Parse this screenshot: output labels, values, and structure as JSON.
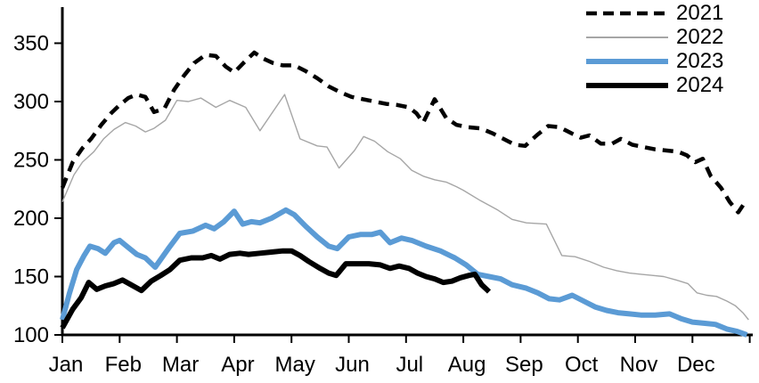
{
  "chart_data": {
    "type": "line",
    "title": "",
    "xlabel": "",
    "ylabel": "",
    "grid": false,
    "legend_position": "top-right",
    "x_axis": {
      "tick_labels": [
        "Jan",
        "Feb",
        "Mar",
        "Apr",
        "May",
        "Jun",
        "Jul",
        "Aug",
        "Sep",
        "Oct",
        "Nov",
        "Dec"
      ],
      "unit": "month",
      "range_months": [
        0,
        12.05
      ]
    },
    "y_axis": {
      "ticks": [
        100,
        150,
        200,
        250,
        300,
        350
      ],
      "range": [
        100,
        362
      ]
    },
    "series": [
      {
        "name": "2021",
        "color": "#000000",
        "style": "dashed",
        "width": 4.5,
        "points": [
          [
            0,
            226
          ],
          [
            0.18,
            248
          ],
          [
            0.35,
            260
          ],
          [
            0.5,
            268
          ],
          [
            0.68,
            280
          ],
          [
            0.85,
            290
          ],
          [
            1.0,
            297
          ],
          [
            1.15,
            303
          ],
          [
            1.3,
            306
          ],
          [
            1.45,
            304
          ],
          [
            1.6,
            291
          ],
          [
            1.78,
            294
          ],
          [
            1.95,
            310
          ],
          [
            2.12,
            322
          ],
          [
            2.3,
            333
          ],
          [
            2.5,
            340
          ],
          [
            2.68,
            339
          ],
          [
            2.85,
            330
          ],
          [
            3.0,
            325
          ],
          [
            3.18,
            334
          ],
          [
            3.35,
            342
          ],
          [
            3.5,
            337
          ],
          [
            3.68,
            333
          ],
          [
            3.85,
            331
          ],
          [
            4.05,
            331
          ],
          [
            4.25,
            326
          ],
          [
            4.45,
            320
          ],
          [
            4.65,
            313
          ],
          [
            4.85,
            308
          ],
          [
            5.05,
            304
          ],
          [
            5.25,
            302
          ],
          [
            5.45,
            300
          ],
          [
            5.65,
            298
          ],
          [
            5.85,
            297
          ],
          [
            6.05,
            295
          ],
          [
            6.18,
            290
          ],
          [
            6.3,
            282
          ],
          [
            6.5,
            302
          ],
          [
            6.7,
            286
          ],
          [
            6.88,
            280
          ],
          [
            7.08,
            278
          ],
          [
            7.3,
            277
          ],
          [
            7.5,
            273
          ],
          [
            7.7,
            268
          ],
          [
            7.9,
            263
          ],
          [
            8.08,
            262
          ],
          [
            8.28,
            271
          ],
          [
            8.48,
            279
          ],
          [
            8.68,
            278
          ],
          [
            8.88,
            273
          ],
          [
            9.05,
            269
          ],
          [
            9.2,
            271
          ],
          [
            9.4,
            264
          ],
          [
            9.6,
            264
          ],
          [
            9.75,
            268
          ],
          [
            9.95,
            263
          ],
          [
            10.15,
            261
          ],
          [
            10.35,
            259
          ],
          [
            10.55,
            258
          ],
          [
            10.75,
            257
          ],
          [
            10.9,
            254
          ],
          [
            11.05,
            248
          ],
          [
            11.18,
            251
          ],
          [
            11.32,
            236
          ],
          [
            11.5,
            226
          ],
          [
            11.65,
            214
          ],
          [
            11.8,
            205
          ],
          [
            11.95,
            216
          ]
        ]
      },
      {
        "name": "2022",
        "color": "#a6a6a6",
        "style": "solid",
        "width": 1.4,
        "points": [
          [
            0,
            214
          ],
          [
            0.2,
            237
          ],
          [
            0.35,
            248
          ],
          [
            0.55,
            257
          ],
          [
            0.72,
            268
          ],
          [
            0.9,
            276
          ],
          [
            1.1,
            282
          ],
          [
            1.28,
            279
          ],
          [
            1.45,
            274
          ],
          [
            1.6,
            277
          ],
          [
            1.8,
            284
          ],
          [
            2.0,
            301
          ],
          [
            2.2,
            300
          ],
          [
            2.42,
            303
          ],
          [
            2.68,
            295
          ],
          [
            2.92,
            301
          ],
          [
            3.2,
            295
          ],
          [
            3.45,
            275
          ],
          [
            3.88,
            306
          ],
          [
            4.15,
            268
          ],
          [
            4.45,
            262
          ],
          [
            4.62,
            261
          ],
          [
            4.83,
            243
          ],
          [
            5.1,
            258
          ],
          [
            5.26,
            270
          ],
          [
            5.45,
            266
          ],
          [
            5.68,
            257
          ],
          [
            5.9,
            251
          ],
          [
            6.1,
            241
          ],
          [
            6.3,
            236
          ],
          [
            6.5,
            233
          ],
          [
            6.7,
            231
          ],
          [
            6.88,
            227
          ],
          [
            7.0,
            224
          ],
          [
            7.3,
            215
          ],
          [
            7.6,
            207
          ],
          [
            7.85,
            199
          ],
          [
            8.1,
            196
          ],
          [
            8.45,
            195
          ],
          [
            8.72,
            168
          ],
          [
            8.95,
            167
          ],
          [
            9.2,
            163
          ],
          [
            9.45,
            158
          ],
          [
            9.68,
            155
          ],
          [
            9.9,
            153
          ],
          [
            10.1,
            152
          ],
          [
            10.3,
            151
          ],
          [
            10.5,
            150
          ],
          [
            10.72,
            147
          ],
          [
            10.92,
            144
          ],
          [
            11.08,
            136
          ],
          [
            11.25,
            134
          ],
          [
            11.42,
            133
          ],
          [
            11.6,
            129
          ],
          [
            11.75,
            125
          ],
          [
            11.88,
            119
          ],
          [
            11.98,
            113
          ]
        ]
      },
      {
        "name": "2023",
        "color": "#5b9bd5",
        "style": "solid",
        "width": 6,
        "points": [
          [
            0,
            113
          ],
          [
            0.12,
            135
          ],
          [
            0.25,
            156
          ],
          [
            0.38,
            168
          ],
          [
            0.48,
            176
          ],
          [
            0.62,
            174
          ],
          [
            0.75,
            170
          ],
          [
            0.9,
            179
          ],
          [
            1.0,
            181
          ],
          [
            1.15,
            175
          ],
          [
            1.3,
            169
          ],
          [
            1.45,
            166
          ],
          [
            1.62,
            158
          ],
          [
            1.85,
            174
          ],
          [
            2.05,
            187
          ],
          [
            2.28,
            189
          ],
          [
            2.5,
            194
          ],
          [
            2.65,
            191
          ],
          [
            2.82,
            197
          ],
          [
            3.0,
            206
          ],
          [
            3.15,
            195
          ],
          [
            3.3,
            197
          ],
          [
            3.45,
            196
          ],
          [
            3.65,
            200
          ],
          [
            3.9,
            207
          ],
          [
            4.05,
            203
          ],
          [
            4.25,
            193
          ],
          [
            4.45,
            184
          ],
          [
            4.65,
            176
          ],
          [
            4.8,
            174
          ],
          [
            5.0,
            184
          ],
          [
            5.2,
            186
          ],
          [
            5.4,
            186
          ],
          [
            5.55,
            188
          ],
          [
            5.72,
            179
          ],
          [
            5.92,
            183
          ],
          [
            6.1,
            181
          ],
          [
            6.35,
            176
          ],
          [
            6.6,
            172
          ],
          [
            6.85,
            166
          ],
          [
            7.05,
            160
          ],
          [
            7.25,
            152
          ],
          [
            7.45,
            150
          ],
          [
            7.65,
            148
          ],
          [
            7.85,
            143
          ],
          [
            8.1,
            140
          ],
          [
            8.3,
            136
          ],
          [
            8.5,
            131
          ],
          [
            8.68,
            130
          ],
          [
            8.9,
            134
          ],
          [
            9.1,
            129
          ],
          [
            9.3,
            124
          ],
          [
            9.5,
            121
          ],
          [
            9.7,
            119
          ],
          [
            9.9,
            118
          ],
          [
            10.1,
            117
          ],
          [
            10.35,
            117
          ],
          [
            10.6,
            118
          ],
          [
            10.8,
            114
          ],
          [
            11.0,
            111
          ],
          [
            11.2,
            110
          ],
          [
            11.4,
            109
          ],
          [
            11.6,
            105
          ],
          [
            11.78,
            103
          ],
          [
            11.95,
            100
          ]
        ]
      },
      {
        "name": "2024",
        "color": "#000000",
        "style": "solid",
        "width": 6,
        "points": [
          [
            0,
            106
          ],
          [
            0.18,
            122
          ],
          [
            0.33,
            132
          ],
          [
            0.46,
            145
          ],
          [
            0.6,
            139
          ],
          [
            0.75,
            142
          ],
          [
            0.9,
            144
          ],
          [
            1.05,
            147
          ],
          [
            1.2,
            143
          ],
          [
            1.38,
            138
          ],
          [
            1.55,
            146
          ],
          [
            1.72,
            151
          ],
          [
            1.88,
            156
          ],
          [
            2.05,
            164
          ],
          [
            2.25,
            166
          ],
          [
            2.45,
            166
          ],
          [
            2.6,
            168
          ],
          [
            2.75,
            165
          ],
          [
            2.92,
            169
          ],
          [
            3.1,
            170
          ],
          [
            3.25,
            169
          ],
          [
            3.45,
            170
          ],
          [
            3.65,
            171
          ],
          [
            3.85,
            172
          ],
          [
            4.0,
            172
          ],
          [
            4.15,
            168
          ],
          [
            4.3,
            163
          ],
          [
            4.5,
            157
          ],
          [
            4.65,
            153
          ],
          [
            4.78,
            151
          ],
          [
            4.95,
            161
          ],
          [
            5.15,
            161
          ],
          [
            5.35,
            161
          ],
          [
            5.55,
            160
          ],
          [
            5.72,
            157
          ],
          [
            5.88,
            159
          ],
          [
            6.05,
            157
          ],
          [
            6.2,
            153
          ],
          [
            6.35,
            150
          ],
          [
            6.5,
            148
          ],
          [
            6.65,
            145
          ],
          [
            6.8,
            146
          ],
          [
            6.95,
            149
          ],
          [
            7.1,
            151
          ],
          [
            7.2,
            152
          ],
          [
            7.32,
            143
          ],
          [
            7.45,
            137
          ]
        ]
      }
    ]
  }
}
